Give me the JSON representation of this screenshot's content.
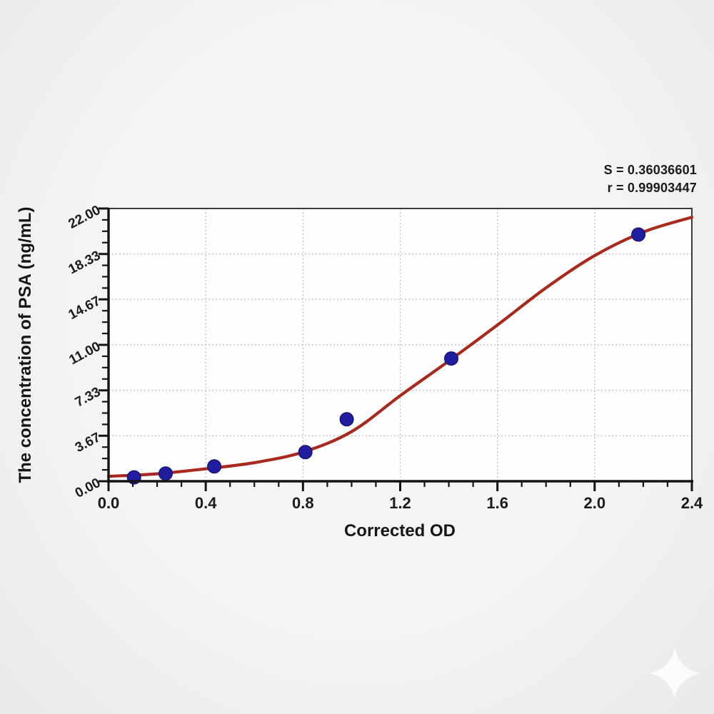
{
  "stats": {
    "s_label": "S = 0.36036601",
    "r_label": "r = 0.99903447"
  },
  "colors": {
    "background": "#f1f1ef",
    "plot_background": "#fefefe",
    "axis": "#141414",
    "border": "#3c3c3c",
    "grid": "#c4c4c4",
    "curve": "#a8291e",
    "point_fill": "#201d9e",
    "point_stroke": "#0e0c63",
    "text": "#1b1b1b"
  },
  "watermark": {
    "icon": "sparkle",
    "color": "#ffffff"
  },
  "chart_data": {
    "type": "scatter",
    "title": "",
    "xlabel": "Corrected OD",
    "ylabel": "The concentration of PSA (ng/mL)",
    "xlim": [
      0,
      2.4
    ],
    "ylim": [
      0,
      22
    ],
    "grid": "dashed lines at major ticks, plot framed on all four sides",
    "legend": "none",
    "x_major_ticks": [
      0.0,
      0.4,
      0.8,
      1.2,
      1.6,
      2.0,
      2.4
    ],
    "x_tick_labels": [
      "0.0",
      "0.4",
      "0.8",
      "1.2",
      "1.6",
      "2.0",
      "2.4"
    ],
    "x_minor_step": 0.1,
    "y_major_ticks": [
      0.0,
      3.67,
      7.33,
      11.0,
      14.67,
      18.33,
      22.0
    ],
    "y_tick_labels": [
      "0.00",
      "3.67",
      "7.33",
      "11.00",
      "14.67",
      "18.33",
      "22.00"
    ],
    "y_minor_per_major": 3,
    "y_tick_label_angle_deg": -28,
    "series": [
      {
        "name": "standard points",
        "kind": "scatter",
        "color": "#201d9e"
      },
      {
        "name": "4PL fit curve",
        "kind": "line",
        "color": "#a8291e"
      }
    ],
    "points": [
      [
        0.105,
        0.31
      ],
      [
        0.235,
        0.62
      ],
      [
        0.435,
        1.2
      ],
      [
        0.81,
        2.35
      ],
      [
        0.98,
        5.0
      ],
      [
        1.41,
        9.9
      ],
      [
        2.18,
        19.9
      ]
    ],
    "fit_curve": [
      [
        0.0,
        0.4
      ],
      [
        0.2,
        0.6
      ],
      [
        0.4,
        1.0
      ],
      [
        0.6,
        1.5
      ],
      [
        0.8,
        2.35
      ],
      [
        1.0,
        4.0
      ],
      [
        1.2,
        6.9
      ],
      [
        1.4,
        9.7
      ],
      [
        1.6,
        12.6
      ],
      [
        1.8,
        15.6
      ],
      [
        2.0,
        18.2
      ],
      [
        2.2,
        20.1
      ],
      [
        2.4,
        21.3
      ]
    ]
  }
}
